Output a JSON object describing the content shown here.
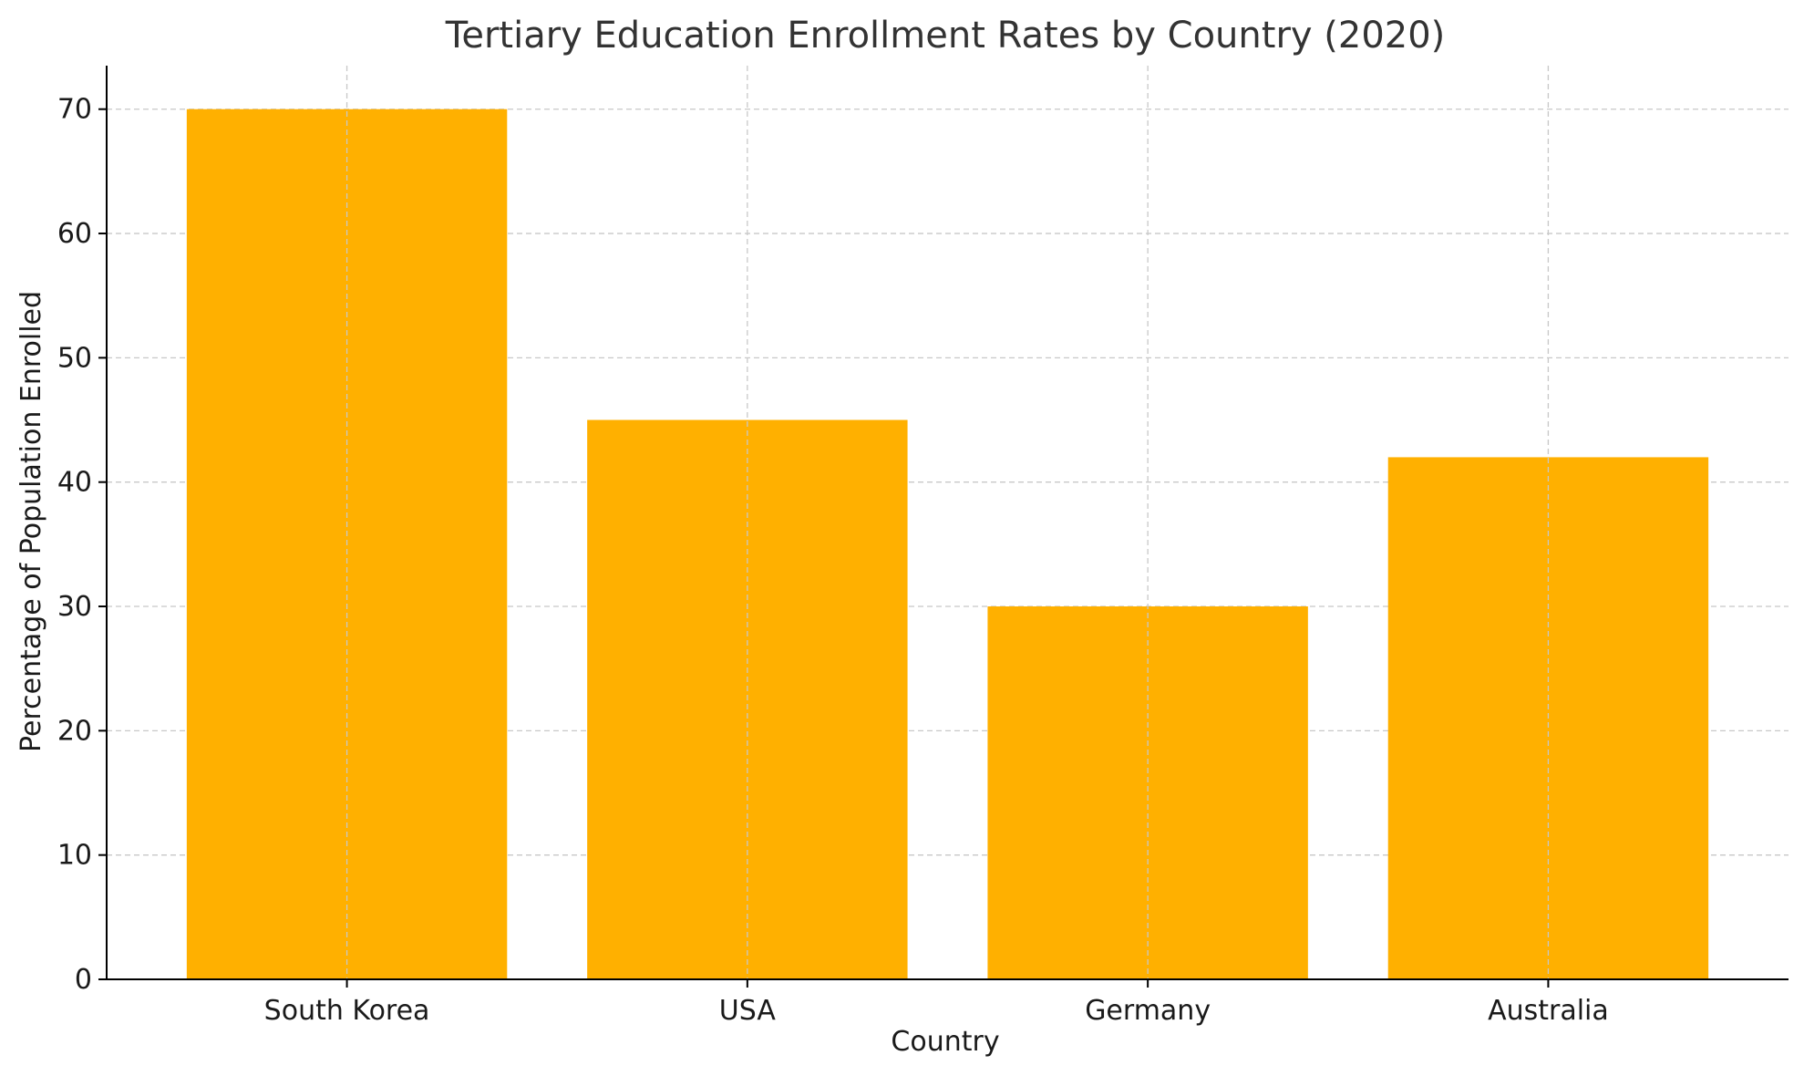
{
  "chart_data": {
    "type": "bar",
    "title": "Tertiary Education Enrollment Rates by Country (2020)",
    "xlabel": "Country",
    "ylabel": "Percentage of Population Enrolled",
    "categories": [
      "South Korea",
      "USA",
      "Germany",
      "Australia"
    ],
    "values": [
      70,
      45,
      30,
      42
    ],
    "ylim": [
      0,
      73.5
    ],
    "yticks": [
      0,
      10,
      20,
      30,
      40,
      50,
      60,
      70
    ],
    "grid": true,
    "bar_color": "#FFB000"
  }
}
